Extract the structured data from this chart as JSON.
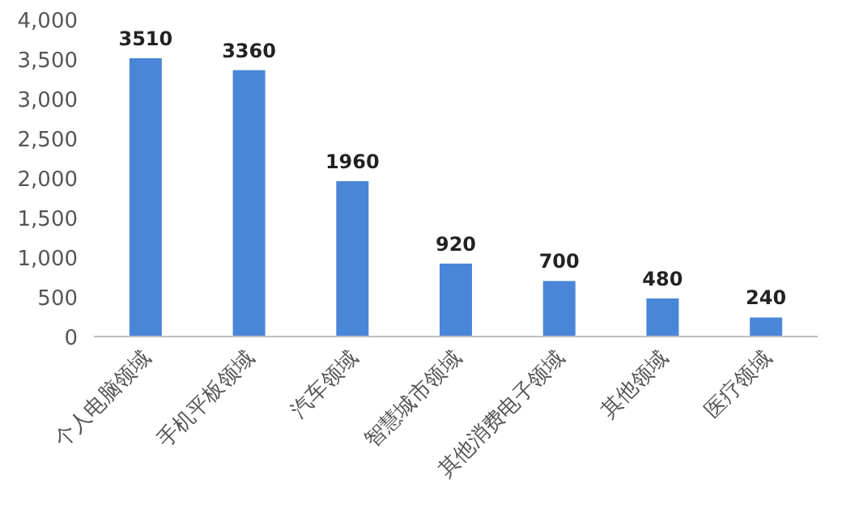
{
  "chart_data": {
    "type": "bar",
    "categories": [
      "个人电脑领域",
      "手机平板领域",
      "汽车领域",
      "智慧城市领域",
      "其他消费电子领域",
      "其他领域",
      "医疗领域"
    ],
    "values": [
      3510,
      3360,
      1960,
      920,
      700,
      480,
      240
    ],
    "color": "#4a86d8",
    "ylim": [
      0,
      4000
    ],
    "yticks": [
      0,
      500,
      {
        "value": 1000,
        "label": "1,000"
      },
      {
        "value": 1500,
        "label": "1,500"
      },
      {
        "value": 2000,
        "label": "2,000"
      },
      {
        "value": 2500,
        "label": "2,500"
      },
      {
        "value": 3000,
        "label": "3,000"
      },
      {
        "value": 3500,
        "label": "3,500"
      },
      {
        "value": 4000,
        "label": "4,000"
      }
    ],
    "data_labels": true
  }
}
